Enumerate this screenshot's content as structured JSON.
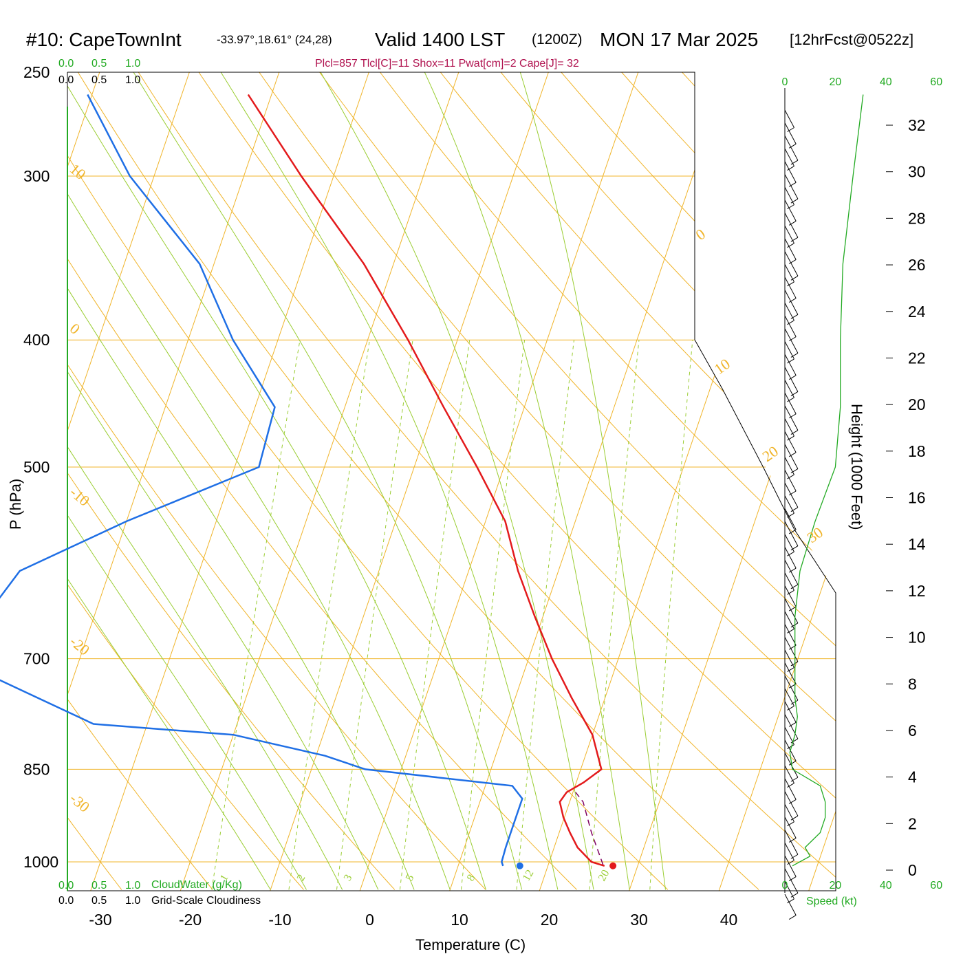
{
  "header": {
    "station": "#10: CapeTownInt",
    "coords": "-33.97°,18.61° (24,28)",
    "valid": "Valid 1400 LST",
    "zulu": "(1200Z)",
    "date": "MON 17 Mar 2025",
    "forecast": "[12hrFcst@0522z]",
    "indices": "Plcl=857 Tlcl[C]=11 Shox=11 Pwat[cm]=2 Cape[J]= 32"
  },
  "colors": {
    "isotherm": "#f0b429",
    "dry_adiabat": "#f0b429",
    "moist_adiabat": "#9acd32",
    "mixing_ratio": "#9acd32",
    "temperature": "#e31a1c",
    "dewpoint": "#1f6fe5",
    "parcel": "#800060",
    "green_axis": "#22aa22",
    "indices_text": "#b0124f"
  },
  "chart_data": {
    "type": "skew-t log-p sounding",
    "xlabel": "Temperature (C)",
    "ylabel": "P (hPa)",
    "right_label": "Height (1000 Feet)",
    "pressure_ticks": [
      250,
      300,
      400,
      500,
      700,
      850,
      1000
    ],
    "temperature_ticks": [
      -30,
      -20,
      -10,
      0,
      10,
      20,
      30,
      40
    ],
    "height_ticks": [
      0,
      2,
      4,
      6,
      8,
      10,
      12,
      14,
      16,
      18,
      20,
      22,
      24,
      26,
      28,
      30,
      32
    ],
    "speed_ticks": [
      0,
      20,
      40,
      60
    ],
    "speed_label": "Speed (kt)",
    "cloud_ticks": [
      "0.0",
      "0.5",
      "1.0"
    ],
    "cloudwater_label": "CloudWater (g/Kg)",
    "cloudiness_label": "Grid-Scale Cloudiness",
    "mixing_ratio_labels": [
      "1",
      "2",
      "3",
      "5",
      "8",
      "12",
      "20"
    ],
    "dry_adiabat_labels": [
      "10",
      "0",
      "-10",
      "-20",
      "-30"
    ],
    "moist_adiabat_labels": [
      "0",
      "10",
      "20",
      "30"
    ],
    "temperature_profile": [
      {
        "p": 1007,
        "t": 26.3
      },
      {
        "p": 1000,
        "t": 24.7
      },
      {
        "p": 975,
        "t": 22.6
      },
      {
        "p": 950,
        "t": 21.2
      },
      {
        "p": 925,
        "t": 19.9
      },
      {
        "p": 900,
        "t": 18.9
      },
      {
        "p": 885,
        "t": 19.3
      },
      {
        "p": 870,
        "t": 20.8
      },
      {
        "p": 850,
        "t": 22.3
      },
      {
        "p": 800,
        "t": 20.0
      },
      {
        "p": 750,
        "t": 16.3
      },
      {
        "p": 700,
        "t": 12.6
      },
      {
        "p": 650,
        "t": 9.1
      },
      {
        "p": 600,
        "t": 5.5
      },
      {
        "p": 550,
        "t": 2.2
      },
      {
        "p": 500,
        "t": -3.0
      },
      {
        "p": 450,
        "t": -9.0
      },
      {
        "p": 400,
        "t": -15.5
      },
      {
        "p": 350,
        "t": -23.3
      },
      {
        "p": 300,
        "t": -33.6
      },
      {
        "p": 260,
        "t": -42.6
      }
    ],
    "dewpoint_profile": [
      {
        "p": 1007,
        "t": 15.0
      },
      {
        "p": 1000,
        "t": 14.7
      },
      {
        "p": 975,
        "t": 14.6
      },
      {
        "p": 925,
        "t": 14.6
      },
      {
        "p": 895,
        "t": 14.6
      },
      {
        "p": 875,
        "t": 13.0
      },
      {
        "p": 850,
        "t": -4.0
      },
      {
        "p": 830,
        "t": -9.0
      },
      {
        "p": 800,
        "t": -20.0
      },
      {
        "p": 785,
        "t": -36.0
      },
      {
        "p": 700,
        "t": -54.0
      },
      {
        "p": 600,
        "t": -50.0
      },
      {
        "p": 550,
        "t": -40.0
      },
      {
        "p": 500,
        "t": -27.3
      },
      {
        "p": 450,
        "t": -27.8
      },
      {
        "p": 400,
        "t": -35.0
      },
      {
        "p": 350,
        "t": -41.6
      },
      {
        "p": 300,
        "t": -52.7
      },
      {
        "p": 260,
        "t": -60.5
      }
    ],
    "parcel_path": [
      {
        "p": 1005,
        "t": 26.1
      },
      {
        "p": 950,
        "t": 23.6
      },
      {
        "p": 900,
        "t": 21.5
      },
      {
        "p": 885,
        "t": 20.3
      }
    ],
    "surface_temperature_marker": 27.4,
    "surface_dewpoint_marker": 16.8,
    "wind_speed_profile": [
      {
        "p": 1007,
        "s": 3
      },
      {
        "p": 990,
        "s": 10
      },
      {
        "p": 975,
        "s": 8
      },
      {
        "p": 950,
        "s": 14
      },
      {
        "p": 925,
        "s": 16
      },
      {
        "p": 900,
        "s": 16
      },
      {
        "p": 875,
        "s": 14
      },
      {
        "p": 850,
        "s": 3
      },
      {
        "p": 825,
        "s": 2
      },
      {
        "p": 800,
        "s": 4
      },
      {
        "p": 775,
        "s": 5
      },
      {
        "p": 750,
        "s": 4
      },
      {
        "p": 700,
        "s": 4
      },
      {
        "p": 650,
        "s": 4
      },
      {
        "p": 600,
        "s": 6
      },
      {
        "p": 550,
        "s": 12
      },
      {
        "p": 500,
        "s": 20
      },
      {
        "p": 450,
        "s": 22
      },
      {
        "p": 400,
        "s": 22
      },
      {
        "p": 350,
        "s": 23
      },
      {
        "p": 300,
        "s": 27
      },
      {
        "p": 260,
        "s": 31
      }
    ]
  }
}
